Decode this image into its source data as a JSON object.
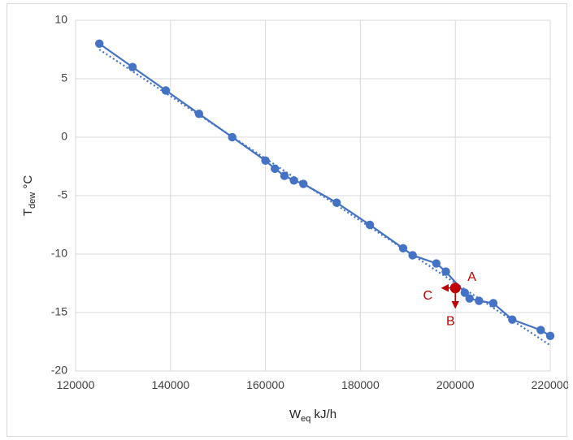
{
  "chart_data": {
    "type": "scatter",
    "xlabel": {
      "main": "W",
      "sub": "eq",
      "unit": " kJ/h"
    },
    "ylabel": {
      "main": "T",
      "sub": "dew",
      "unit": " °C"
    },
    "xlim": [
      120000,
      220000
    ],
    "ylim": [
      -20,
      10
    ],
    "x_ticks": [
      120000,
      140000,
      160000,
      180000,
      200000,
      220000
    ],
    "y_ticks": [
      -20,
      -15,
      -10,
      -5,
      0,
      5,
      10
    ],
    "x_tick_labels": [
      "120000",
      "140000",
      "160000",
      "180000",
      "200000",
      "220000"
    ],
    "y_tick_labels": [
      "-20",
      "-15",
      "-10",
      "-5",
      "0",
      "5",
      "10"
    ],
    "grid": true,
    "legend": "none",
    "series": [
      {
        "style": "line-markers",
        "color": "#4472c4",
        "points": [
          [
            125000,
            8.0
          ],
          [
            132000,
            6.0
          ],
          [
            139000,
            4.0
          ],
          [
            146000,
            2.0
          ],
          [
            153000,
            0.0
          ],
          [
            160000,
            -2.0
          ],
          [
            162000,
            -2.7
          ],
          [
            164000,
            -3.3
          ],
          [
            166000,
            -3.7
          ],
          [
            168000,
            -4.0
          ],
          [
            175000,
            -5.6
          ],
          [
            182000,
            -7.5
          ],
          [
            189000,
            -9.5
          ],
          [
            191000,
            -10.1
          ],
          [
            196000,
            -10.8
          ],
          [
            198000,
            -11.5
          ],
          [
            202000,
            -13.3
          ],
          [
            203000,
            -13.8
          ],
          [
            205000,
            -14.0
          ],
          [
            208000,
            -14.2
          ],
          [
            212000,
            -15.6
          ],
          [
            218000,
            -16.5
          ],
          [
            220000,
            -17.0
          ]
        ]
      }
    ],
    "trendline": {
      "style": "dotted",
      "color": "#4472c4",
      "from": [
        125000,
        7.5
      ],
      "to": [
        220000,
        -17.8
      ]
    },
    "annotations": {
      "point": {
        "x": 200000,
        "y": -12.9,
        "color": "#c00000"
      },
      "labels": [
        {
          "text": "A",
          "x": 203500,
          "y": -12.0
        },
        {
          "text": "B",
          "x": 199000,
          "y": -15.8
        },
        {
          "text": "C",
          "x": 194200,
          "y": -13.6
        }
      ]
    }
  }
}
